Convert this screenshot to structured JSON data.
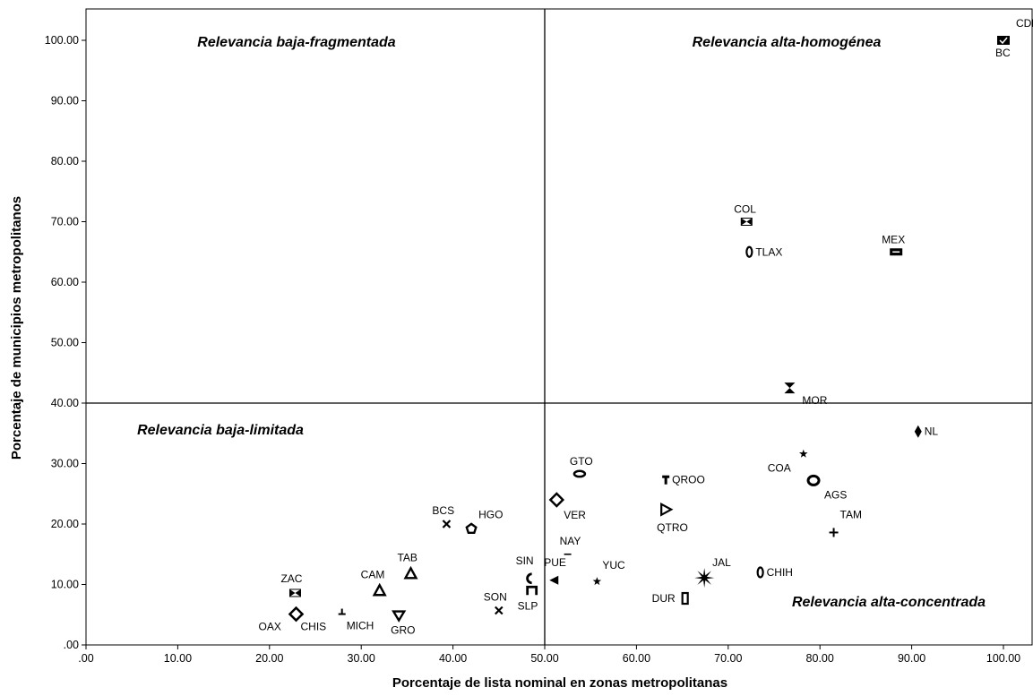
{
  "chart_data": {
    "type": "scatter",
    "title": "",
    "xlabel": "Porcentaje de lista nominal en zonas metropolitanas",
    "ylabel": "Porcentaje de municipios metropolitanos",
    "xlim": [
      0,
      105
    ],
    "ylim": [
      0,
      105
    ],
    "x_ticks": [
      ".00",
      "10.00",
      "20.00",
      "30.00",
      "40.00",
      "50.00",
      "60.00",
      "70.00",
      "80.00",
      "90.00",
      "100.00"
    ],
    "y_ticks": [
      ".00",
      "10.00",
      "20.00",
      "30.00",
      "40.00",
      "50.00",
      "60.00",
      "70.00",
      "80.00",
      "90.00",
      "100.00"
    ],
    "reference_lines": {
      "x": 50,
      "y": 40
    },
    "grid": false,
    "quadrant_labels": {
      "top_left": "Relevancia baja-fragmentada",
      "top_right": "Relevancia alta-homogénea",
      "bottom_left": "Relevancia baja-limitada",
      "bottom_right": "Relevancia alta-concentrada"
    },
    "points": [
      {
        "label": "CDMX",
        "x": 100.0,
        "y": 100.0,
        "marker": "square-check"
      },
      {
        "label": "BC",
        "x": 100.0,
        "y": 100.0,
        "marker": "square-check"
      },
      {
        "label": "COL",
        "x": 72.0,
        "y": 70.0,
        "marker": "bowtie"
      },
      {
        "label": "TLAX",
        "x": 72.3,
        "y": 65.0,
        "marker": "zero"
      },
      {
        "label": "MEX",
        "x": 88.3,
        "y": 65.0,
        "marker": "rect-bar"
      },
      {
        "label": "MOR",
        "x": 76.7,
        "y": 42.5,
        "marker": "hourglass"
      },
      {
        "label": "NL",
        "x": 90.7,
        "y": 35.3,
        "marker": "diamond-filled"
      },
      {
        "label": "COA",
        "x": 78.2,
        "y": 31.6,
        "marker": "star-small"
      },
      {
        "label": "AGS",
        "x": 79.3,
        "y": 27.2,
        "marker": "ring"
      },
      {
        "label": "QROO",
        "x": 63.2,
        "y": 27.3,
        "marker": "t-mark"
      },
      {
        "label": "GTO",
        "x": 53.8,
        "y": 28.3,
        "marker": "oval"
      },
      {
        "label": "VER",
        "x": 51.3,
        "y": 24.0,
        "marker": "diamond-open"
      },
      {
        "label": "QTRO",
        "x": 63.2,
        "y": 22.4,
        "marker": "triangle-right"
      },
      {
        "label": "TAM",
        "x": 81.5,
        "y": 18.6,
        "marker": "plus"
      },
      {
        "label": "BCS",
        "x": 39.3,
        "y": 20.0,
        "marker": "x"
      },
      {
        "label": "HGO",
        "x": 42.0,
        "y": 19.2,
        "marker": "pentagon"
      },
      {
        "label": "NAY",
        "x": 52.5,
        "y": 15.0,
        "marker": "dash"
      },
      {
        "label": "JAL",
        "x": 67.4,
        "y": 11.1,
        "marker": "star-big"
      },
      {
        "label": "CHIH",
        "x": 73.5,
        "y": 12.0,
        "marker": "zero"
      },
      {
        "label": "YUC",
        "x": 55.7,
        "y": 10.5,
        "marker": "star-small"
      },
      {
        "label": "PUE",
        "x": 51.0,
        "y": 10.7,
        "marker": "triangle-left"
      },
      {
        "label": "SIN",
        "x": 48.3,
        "y": 11.0,
        "marker": "c-shape"
      },
      {
        "label": "SLP",
        "x": 48.6,
        "y": 9.0,
        "marker": "n-shape"
      },
      {
        "label": "DUR",
        "x": 65.3,
        "y": 7.7,
        "marker": "rect-open"
      },
      {
        "label": "SON",
        "x": 45.0,
        "y": 5.7,
        "marker": "x"
      },
      {
        "label": "TAB",
        "x": 35.4,
        "y": 11.8,
        "marker": "triangle-up"
      },
      {
        "label": "CAM",
        "x": 32.0,
        "y": 9.0,
        "marker": "triangle-up"
      },
      {
        "label": "ZAC",
        "x": 22.8,
        "y": 8.6,
        "marker": "bowtie"
      },
      {
        "label": "CHIS",
        "x": 22.9,
        "y": 5.1,
        "marker": "diamond-open"
      },
      {
        "label": "OAX",
        "x": 22.9,
        "y": 5.1,
        "marker": "diamond-open"
      },
      {
        "label": "MICH",
        "x": 27.9,
        "y": 5.4,
        "marker": "small-t"
      },
      {
        "label": "GRO",
        "x": 34.1,
        "y": 4.8,
        "marker": "triangle-down"
      }
    ]
  }
}
